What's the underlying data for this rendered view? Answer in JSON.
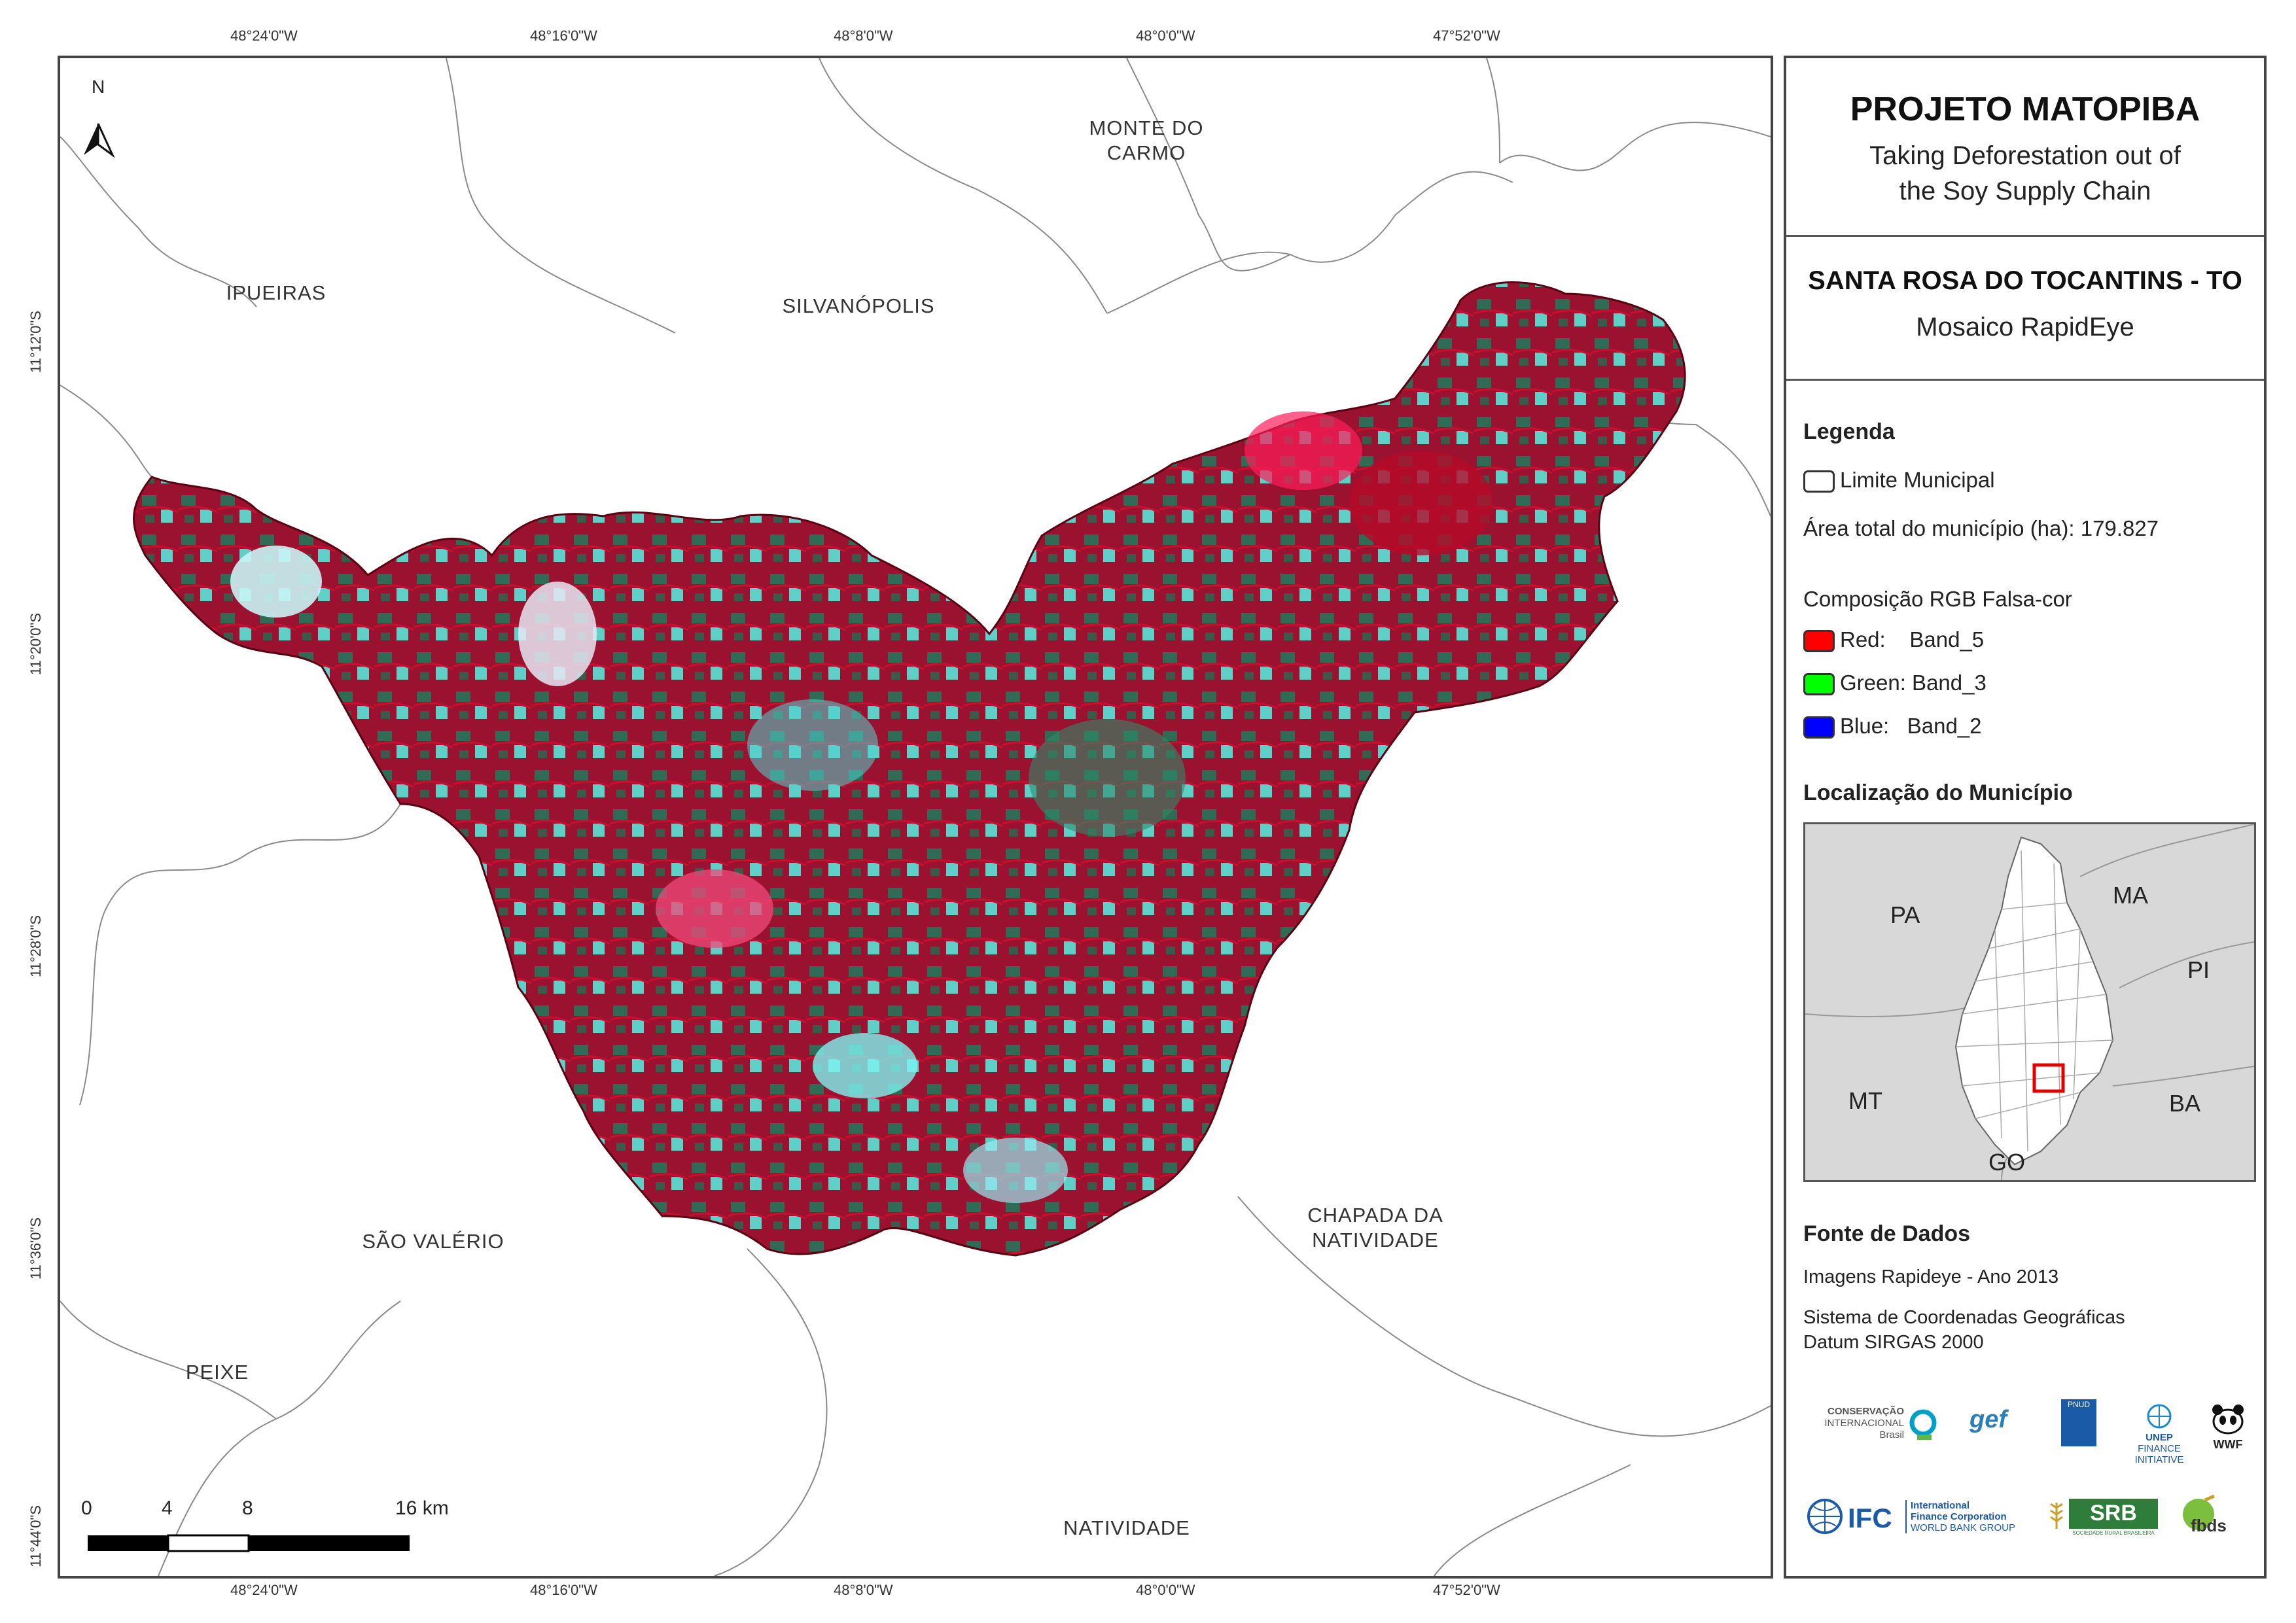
{
  "map": {
    "coords_top": [
      "48°24'0\"W",
      "48°16'0\"W",
      "48°8'0\"W",
      "48°0'0\"W",
      "47°52'0\"W"
    ],
    "coords_bottom": [
      "48°24'0\"W",
      "48°16'0\"W",
      "48°8'0\"W",
      "48°0'0\"W",
      "47°52'0\"W"
    ],
    "coords_left": [
      "11°12'0\"S",
      "11°20'0\"S",
      "11°28'0\"S",
      "11°36'0\"S",
      "11°44'0\"S"
    ],
    "places": {
      "monte_do_carmo": "MONTE DO CARMO",
      "ipueiras": "IPUEIRAS",
      "silvanopolis": "SILVANÓPOLIS",
      "chapada": "CHAPADA DA NATIVIDADE",
      "sao_valerio": "SÃO VALÉRIO",
      "peixe": "PEIXE",
      "natividade": "NATIVIDADE"
    },
    "north_label": "N",
    "scale_labels": [
      "0",
      "4",
      "8",
      "16 km"
    ]
  },
  "panel": {
    "title": "PROJETO MATOPIBA",
    "subtitle_1": "Taking Deforestation out of",
    "subtitle_2": "the Soy Supply Chain",
    "municipality": "SANTA ROSA DO TOCANTINS - TO",
    "mosaic": "Mosaico RapidEye",
    "legend_title": "Legenda",
    "legend_limit": "Limite Municipal",
    "area_total": "Área total do município (ha): 179.827",
    "rgb_title": "Composição RGB Falsa-cor",
    "bands": [
      {
        "label": "Red:    Band_5",
        "color": "#ff0000"
      },
      {
        "label": "Green: Band_3",
        "color": "#00ff00"
      },
      {
        "label": "Blue:   Band_2",
        "color": "#0000ff"
      }
    ],
    "location_title": "Localização do Município",
    "inset_labels": {
      "pa": "PA",
      "ma": "MA",
      "pi": "PI",
      "mt": "MT",
      "ba": "BA",
      "go": "GO"
    },
    "sources_title": "Fonte de Dados",
    "source_1": "Imagens Rapideye - Ano 2013",
    "source_2": "Sistema de Coordenadas Geográficas",
    "source_3": "Datum SIRGAS 2000"
  },
  "logos": {
    "ci_1": "CONSERVAÇÃO",
    "ci_2": "INTERNACIONAL",
    "ci_3": "Brasil",
    "gef": "gef",
    "undp": "PNUD",
    "unep_1": "UNEP",
    "unep_2": "FINANCE",
    "unep_3": "INITIATIVE",
    "wwf": "WWF",
    "ifc": "IFC",
    "ifc_1": "International",
    "ifc_2": "Finance Corporation",
    "ifc_3": "WORLD BANK GROUP",
    "srb": "SRB",
    "srb_sub": "SOCIEDADE RURAL BRASILEIRA",
    "fbds": "fbds"
  }
}
